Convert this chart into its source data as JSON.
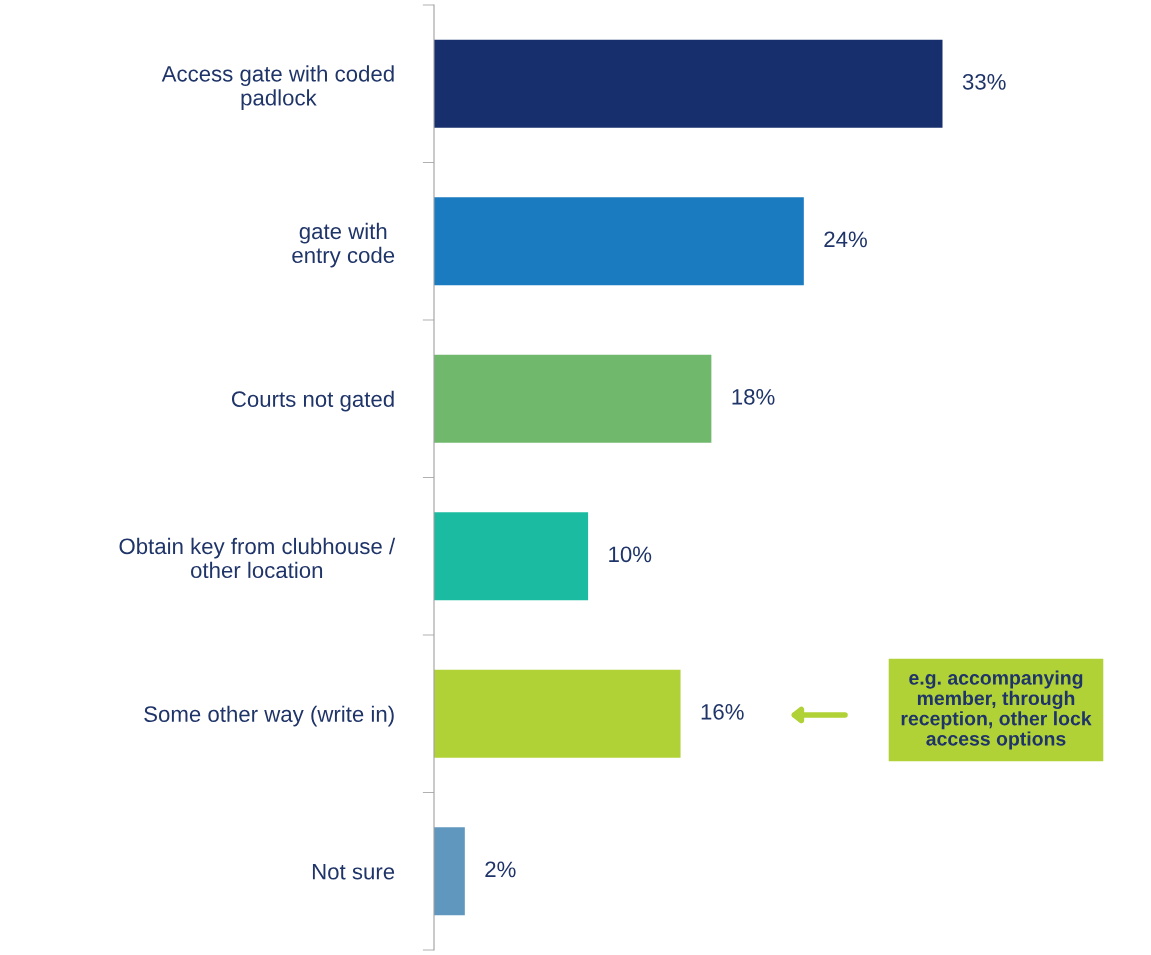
{
  "chart_data": {
    "type": "bar",
    "orientation": "horizontal",
    "categories": [
      "Access gate with coded\npadlock",
      "gate with\nentry code",
      "Courts not gated",
      "Obtain key from clubhouse /\nother location",
      "Some other way (write in)",
      "Not sure"
    ],
    "values": [
      33,
      24,
      18,
      10,
      16,
      2
    ],
    "colors": [
      "#17306d",
      "#1b7bc0",
      "#70b96c",
      "#1abba0",
      "#b1d236",
      "#6097bf"
    ],
    "value_labels": [
      "33%",
      "24%",
      "18%",
      "10%",
      "16%",
      "2%"
    ],
    "relative": false,
    "annotations": [
      "e.g. accompanying\nmember, through\nreception, other lock\naccess options"
    ],
    "grid": false,
    "legend": false
  }
}
